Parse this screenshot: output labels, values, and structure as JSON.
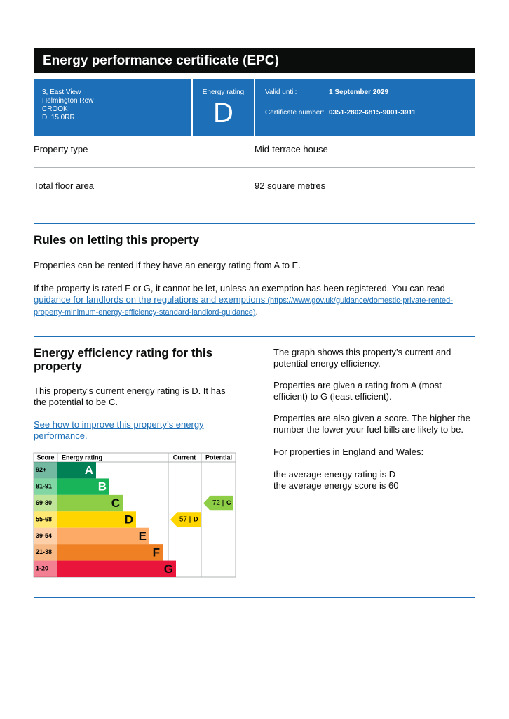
{
  "header": {
    "title": "Energy performance certificate (EPC)"
  },
  "address": [
    "3, East View",
    "Helmington Row",
    "CROOK",
    "DL15 0RR"
  ],
  "rating_box": {
    "label": "Energy rating",
    "rating": "D"
  },
  "validity": {
    "valid_label": "Valid until:",
    "valid_value": "1 September 2029",
    "cert_label": "Certificate number:",
    "cert_value": "0351-2802-6815-9001-3911"
  },
  "property": [
    {
      "label": "Property type",
      "value": "Mid-terrace house"
    },
    {
      "label": "Total floor area",
      "value": "92 square metres"
    }
  ],
  "letting": {
    "title": "Rules on letting this property",
    "p1": "Properties can be rented if they have an energy rating from A to E.",
    "p2_text": "If the property is rated F or G, it cannot be let, unless an exemption has been registered. You can read ",
    "p2_link": "guidance for landlords on the regulations and exemptions",
    "p2_url": " (https://www.gov.uk/guidance/domestic-private-rented-property-minimum-energy-efficiency-standard-landlord-guidance)",
    "p2_end": "."
  },
  "efficiency": {
    "title": "Energy efficiency rating for this property",
    "p1": "This property’s current energy rating is D. It has the potential to be C.",
    "link": "See how to improve this property’s energy performance.",
    "right": [
      "The graph shows this property’s current and potential energy efficiency.",
      "Properties are given a rating from A (most efficient) to G (least efficient).",
      "Properties are also given a score. The higher the number the lower your fuel bills are likely to be.",
      "For properties in England and Wales:"
    ],
    "averages": [
      "the average energy rating is D",
      "the average energy score is 60"
    ]
  },
  "graph": {
    "headers": [
      "Score",
      "Energy rating",
      "Current",
      "Potential"
    ],
    "bands": [
      {
        "score": "92+",
        "letter": "A",
        "color": "#008054"
      },
      {
        "score": "81-91",
        "letter": "B",
        "color": "#19b459"
      },
      {
        "score": "69-80",
        "letter": "C",
        "color": "#8dce46"
      },
      {
        "score": "55-68",
        "letter": "D",
        "color": "#ffd500"
      },
      {
        "score": "39-54",
        "letter": "E",
        "color": "#fcaa65"
      },
      {
        "score": "21-38",
        "letter": "F",
        "color": "#ef8023"
      },
      {
        "score": "1-20",
        "letter": "G",
        "color": "#e9153b"
      }
    ],
    "current": {
      "score": 57,
      "letter": "D"
    },
    "potential": {
      "score": 72,
      "letter": "C"
    }
  }
}
